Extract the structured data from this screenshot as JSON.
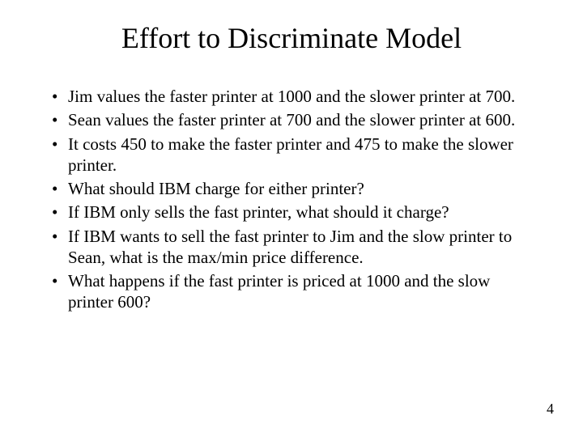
{
  "slide": {
    "title": "Effort to Discriminate Model",
    "bullets": [
      "Jim values the faster printer at 1000 and the slower printer at 700.",
      "Sean values the faster printer at 700 and the slower printer at 600.",
      "It costs 450 to make the faster printer and 475 to make the slower printer.",
      "What should IBM charge for either printer?",
      "If IBM only sells the fast printer, what should it charge?",
      "If IBM wants to sell the fast printer to Jim and the slow printer to Sean, what is the max/min price difference.",
      "What happens if the fast printer is priced at 1000 and the slow printer 600?"
    ],
    "page_number": "4"
  },
  "style": {
    "background_color": "#ffffff",
    "text_color": "#000000",
    "font_family": "Times New Roman",
    "title_fontsize": 36,
    "body_fontsize": 21,
    "bullet_glyph": "•"
  }
}
